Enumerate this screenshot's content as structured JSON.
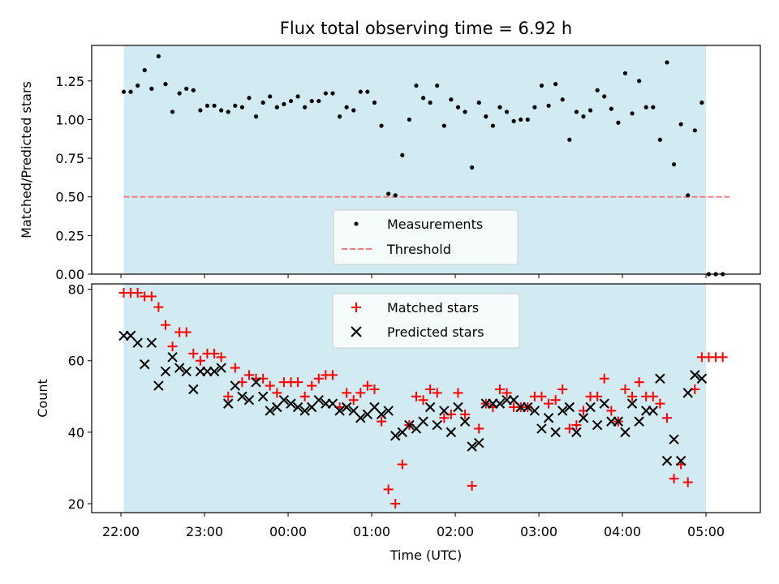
{
  "chart_data": [
    {
      "type": "scatter",
      "title": "Flux total observing time = 6.92 h",
      "xlabel": "",
      "ylabel": "Matched/Predicted stars",
      "ylim": [
        0,
        1.48
      ],
      "yticks": [
        "0.00",
        "0.25",
        "0.50",
        "0.75",
        "1.00",
        "1.25"
      ],
      "xlim": [
        "21:39",
        "05:39"
      ],
      "observing_window": [
        "22:02",
        "05:00"
      ],
      "shading_color": "#add8e6",
      "legend": "lower center",
      "series": [
        {
          "name": "Measurements",
          "marker": "dot",
          "color": "#000000",
          "points": [
            [
              "22:02",
              1.18
            ],
            [
              "22:07",
              1.18
            ],
            [
              "22:12",
              1.22
            ],
            [
              "22:17",
              1.32
            ],
            [
              "22:22",
              1.2
            ],
            [
              "22:27",
              1.41
            ],
            [
              "22:32",
              1.23
            ],
            [
              "22:37",
              1.05
            ],
            [
              "22:42",
              1.17
            ],
            [
              "22:47",
              1.2
            ],
            [
              "22:52",
              1.19
            ],
            [
              "22:57",
              1.06
            ],
            [
              "23:02",
              1.09
            ],
            [
              "23:07",
              1.09
            ],
            [
              "23:12",
              1.06
            ],
            [
              "23:17",
              1.05
            ],
            [
              "23:22",
              1.09
            ],
            [
              "23:27",
              1.08
            ],
            [
              "23:32",
              1.14
            ],
            [
              "23:37",
              1.02
            ],
            [
              "23:42",
              1.11
            ],
            [
              "23:47",
              1.15
            ],
            [
              "23:52",
              1.08
            ],
            [
              "23:57",
              1.1
            ],
            [
              "00:02",
              1.12
            ],
            [
              "00:07",
              1.15
            ],
            [
              "00:12",
              1.08
            ],
            [
              "00:17",
              1.12
            ],
            [
              "00:22",
              1.12
            ],
            [
              "00:27",
              1.17
            ],
            [
              "00:32",
              1.17
            ],
            [
              "00:37",
              1.02
            ],
            [
              "00:42",
              1.08
            ],
            [
              "00:47",
              1.06
            ],
            [
              "00:52",
              1.18
            ],
            [
              "00:57",
              1.18
            ],
            [
              "01:02",
              1.11
            ],
            [
              "01:07",
              0.96
            ],
            [
              "01:12",
              0.52
            ],
            [
              "01:17",
              0.51
            ],
            [
              "01:22",
              0.77
            ],
            [
              "01:27",
              1.0
            ],
            [
              "01:32",
              1.22
            ],
            [
              "01:37",
              1.14
            ],
            [
              "01:42",
              1.11
            ],
            [
              "01:47",
              1.22
            ],
            [
              "01:52",
              0.96
            ],
            [
              "01:57",
              1.13
            ],
            [
              "02:02",
              1.08
            ],
            [
              "02:07",
              1.05
            ],
            [
              "02:12",
              0.69
            ],
            [
              "02:17",
              1.11
            ],
            [
              "02:22",
              1.02
            ],
            [
              "02:27",
              0.96
            ],
            [
              "02:32",
              1.08
            ],
            [
              "02:37",
              1.05
            ],
            [
              "02:42",
              0.99
            ],
            [
              "02:47",
              1.0
            ],
            [
              "02:52",
              1.0
            ],
            [
              "02:57",
              1.08
            ],
            [
              "03:02",
              1.22
            ],
            [
              "03:07",
              1.09
            ],
            [
              "03:12",
              1.23
            ],
            [
              "03:17",
              1.13
            ],
            [
              "03:22",
              0.87
            ],
            [
              "03:27",
              1.05
            ],
            [
              "03:32",
              1.02
            ],
            [
              "03:37",
              1.06
            ],
            [
              "03:42",
              1.19
            ],
            [
              "03:47",
              1.15
            ],
            [
              "03:52",
              1.07
            ],
            [
              "03:57",
              0.98
            ],
            [
              "04:02",
              1.3
            ],
            [
              "04:07",
              1.04
            ],
            [
              "04:12",
              1.25
            ],
            [
              "04:17",
              1.08
            ],
            [
              "04:22",
              1.08
            ],
            [
              "04:27",
              0.87
            ],
            [
              "04:32",
              1.37
            ],
            [
              "04:37",
              0.71
            ],
            [
              "04:42",
              0.97
            ],
            [
              "04:47",
              0.51
            ],
            [
              "04:52",
              0.93
            ],
            [
              "04:57",
              1.11
            ],
            [
              "05:02",
              0.0
            ],
            [
              "05:07",
              0.0
            ],
            [
              "05:12",
              0.0
            ]
          ]
        },
        {
          "name": "Threshold",
          "marker": "dashed-line",
          "color": "#f08080",
          "x_range": [
            "22:02",
            "05:17"
          ],
          "y": 0.5
        }
      ]
    },
    {
      "type": "scatter",
      "title": "",
      "xlabel": "Time (UTC)",
      "ylabel": "Count",
      "ylim": [
        17.5,
        81.5
      ],
      "yticks": [
        "20",
        "40",
        "60",
        "80"
      ],
      "xticks": [
        "22:00",
        "23:00",
        "00:00",
        "01:00",
        "02:00",
        "03:00",
        "04:00",
        "05:00"
      ],
      "xlim": [
        "21:39",
        "05:39"
      ],
      "observing_window": [
        "22:02",
        "05:00"
      ],
      "shading_color": "#add8e6",
      "legend": "upper center",
      "series": [
        {
          "name": "Matched stars",
          "marker": "plus",
          "color": "#ff0000",
          "points": [
            [
              "22:02",
              79
            ],
            [
              "22:07",
              79
            ],
            [
              "22:12",
              79
            ],
            [
              "22:17",
              78
            ],
            [
              "22:22",
              78
            ],
            [
              "22:27",
              75
            ],
            [
              "22:32",
              70
            ],
            [
              "22:37",
              64
            ],
            [
              "22:42",
              68
            ],
            [
              "22:47",
              68
            ],
            [
              "22:52",
              62
            ],
            [
              "22:57",
              60
            ],
            [
              "23:02",
              62
            ],
            [
              "23:07",
              62
            ],
            [
              "23:12",
              61
            ],
            [
              "23:17",
              50
            ],
            [
              "23:22",
              58
            ],
            [
              "23:27",
              54
            ],
            [
              "23:32",
              56
            ],
            [
              "23:37",
              55
            ],
            [
              "23:42",
              55
            ],
            [
              "23:47",
              53
            ],
            [
              "23:52",
              51
            ],
            [
              "23:57",
              54
            ],
            [
              "00:02",
              54
            ],
            [
              "00:07",
              54
            ],
            [
              "00:12",
              50
            ],
            [
              "00:17",
              53
            ],
            [
              "00:22",
              55
            ],
            [
              "00:27",
              56
            ],
            [
              "00:32",
              56
            ],
            [
              "00:37",
              47
            ],
            [
              "00:42",
              51
            ],
            [
              "00:47",
              49
            ],
            [
              "00:52",
              51
            ],
            [
              "00:57",
              53
            ],
            [
              "01:02",
              52
            ],
            [
              "01:07",
              43
            ],
            [
              "01:12",
              24
            ],
            [
              "01:17",
              20
            ],
            [
              "01:22",
              31
            ],
            [
              "01:27",
              42
            ],
            [
              "01:32",
              50
            ],
            [
              "01:37",
              49
            ],
            [
              "01:42",
              52
            ],
            [
              "01:47",
              51
            ],
            [
              "01:52",
              44
            ],
            [
              "01:57",
              45
            ],
            [
              "02:02",
              51
            ],
            [
              "02:07",
              45
            ],
            [
              "02:12",
              25
            ],
            [
              "02:17",
              41
            ],
            [
              "02:22",
              48
            ],
            [
              "02:27",
              47
            ],
            [
              "02:32",
              52
            ],
            [
              "02:37",
              51
            ],
            [
              "02:42",
              47
            ],
            [
              "02:47",
              47
            ],
            [
              "02:52",
              47
            ],
            [
              "02:57",
              50
            ],
            [
              "03:02",
              50
            ],
            [
              "03:07",
              48
            ],
            [
              "03:12",
              49
            ],
            [
              "03:17",
              52
            ],
            [
              "03:22",
              41
            ],
            [
              "03:27",
              42
            ],
            [
              "03:32",
              46
            ],
            [
              "03:37",
              50
            ],
            [
              "03:42",
              50
            ],
            [
              "03:47",
              55
            ],
            [
              "03:52",
              46
            ],
            [
              "03:57",
              43
            ],
            [
              "04:02",
              52
            ],
            [
              "04:07",
              50
            ],
            [
              "04:12",
              54
            ],
            [
              "04:17",
              50
            ],
            [
              "04:22",
              50
            ],
            [
              "04:27",
              48
            ],
            [
              "04:32",
              44
            ],
            [
              "04:37",
              27
            ],
            [
              "04:42",
              31
            ],
            [
              "04:47",
              26
            ],
            [
              "04:52",
              52
            ],
            [
              "04:57",
              61
            ],
            [
              "05:02",
              61
            ],
            [
              "05:07",
              61
            ],
            [
              "05:12",
              61
            ]
          ]
        },
        {
          "name": "Predicted stars",
          "marker": "x",
          "color": "#000000",
          "points": [
            [
              "22:02",
              67
            ],
            [
              "22:07",
              67
            ],
            [
              "22:12",
              65
            ],
            [
              "22:17",
              59
            ],
            [
              "22:22",
              65
            ],
            [
              "22:27",
              53
            ],
            [
              "22:32",
              57
            ],
            [
              "22:37",
              61
            ],
            [
              "22:42",
              58
            ],
            [
              "22:47",
              57
            ],
            [
              "22:52",
              52
            ],
            [
              "22:57",
              57
            ],
            [
              "23:02",
              57
            ],
            [
              "23:07",
              57
            ],
            [
              "23:12",
              58
            ],
            [
              "23:17",
              48
            ],
            [
              "23:22",
              53
            ],
            [
              "23:27",
              50
            ],
            [
              "23:32",
              49
            ],
            [
              "23:37",
              54
            ],
            [
              "23:42",
              50
            ],
            [
              "23:47",
              46
            ],
            [
              "23:52",
              47
            ],
            [
              "23:57",
              49
            ],
            [
              "00:02",
              48
            ],
            [
              "00:07",
              47
            ],
            [
              "00:12",
              46
            ],
            [
              "00:17",
              47
            ],
            [
              "00:22",
              49
            ],
            [
              "00:27",
              48
            ],
            [
              "00:32",
              48
            ],
            [
              "00:37",
              46
            ],
            [
              "00:42",
              47
            ],
            [
              "00:47",
              46
            ],
            [
              "00:52",
              44
            ],
            [
              "00:57",
              45
            ],
            [
              "01:02",
              47
            ],
            [
              "01:07",
              45
            ],
            [
              "01:12",
              46
            ],
            [
              "01:17",
              39
            ],
            [
              "01:22",
              40
            ],
            [
              "01:27",
              42
            ],
            [
              "01:32",
              41
            ],
            [
              "01:37",
              43
            ],
            [
              "01:42",
              47
            ],
            [
              "01:47",
              42
            ],
            [
              "01:52",
              46
            ],
            [
              "01:57",
              40
            ],
            [
              "02:02",
              47
            ],
            [
              "02:07",
              43
            ],
            [
              "02:12",
              36
            ],
            [
              "02:17",
              37
            ],
            [
              "02:22",
              48
            ],
            [
              "02:27",
              48
            ],
            [
              "02:32",
              48
            ],
            [
              "02:37",
              49
            ],
            [
              "02:42",
              49
            ],
            [
              "02:47",
              47
            ],
            [
              "02:52",
              47
            ],
            [
              "02:57",
              46
            ],
            [
              "03:02",
              41
            ],
            [
              "03:07",
              44
            ],
            [
              "03:12",
              40
            ],
            [
              "03:17",
              46
            ],
            [
              "03:22",
              47
            ],
            [
              "03:27",
              40
            ],
            [
              "03:32",
              44
            ],
            [
              "03:37",
              47
            ],
            [
              "03:42",
              42
            ],
            [
              "03:47",
              48
            ],
            [
              "03:52",
              43
            ],
            [
              "03:57",
              43
            ],
            [
              "04:02",
              40
            ],
            [
              "04:07",
              48
            ],
            [
              "04:12",
              43
            ],
            [
              "04:17",
              46
            ],
            [
              "04:22",
              46
            ],
            [
              "04:27",
              55
            ],
            [
              "04:32",
              32
            ],
            [
              "04:37",
              38
            ],
            [
              "04:42",
              32
            ],
            [
              "04:47",
              51
            ],
            [
              "04:52",
              56
            ],
            [
              "04:57",
              55
            ]
          ]
        }
      ]
    }
  ]
}
